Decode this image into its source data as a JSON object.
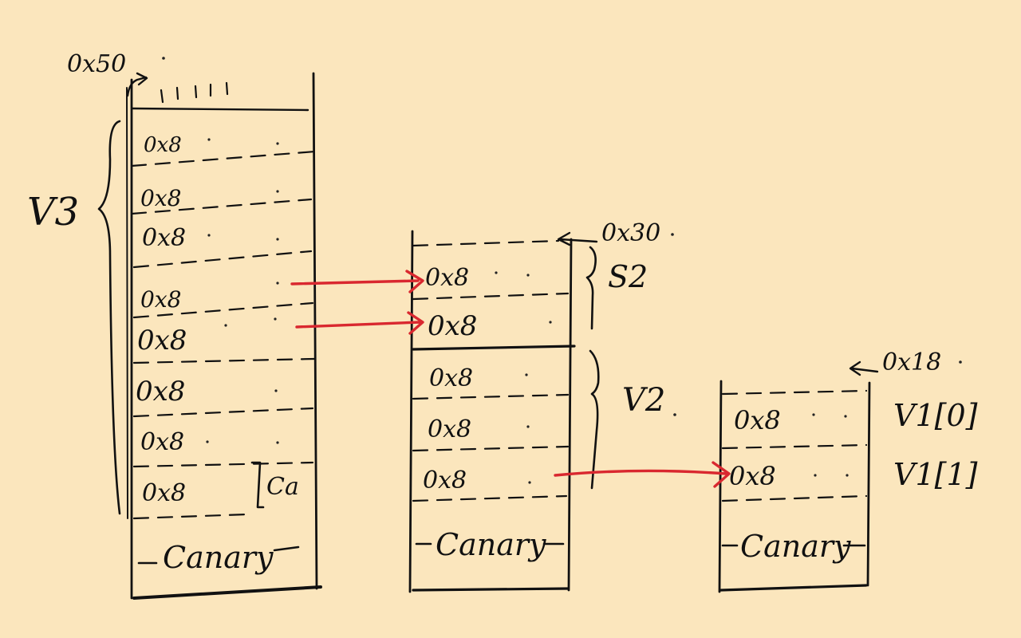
{
  "stack_v3": {
    "top_offset": "0x50",
    "group_label": "V3",
    "cells": [
      "0x8",
      "0x8",
      "0x8",
      "0x8",
      "0x8",
      "0x8",
      "0x8",
      "0x8"
    ],
    "ca_label": "Ca",
    "canary": "Canary"
  },
  "stack_s2_v2": {
    "top_offset": "0x30",
    "s2_label": "S2",
    "v2_label": "V2",
    "cells": [
      "0x8",
      "0x8",
      "0x8",
      "0x8",
      "0x8"
    ],
    "canary": "Canary"
  },
  "stack_v1": {
    "top_offset": "0x18",
    "cells": [
      "0x8",
      "0x8"
    ],
    "cell_labels": [
      "V1[0]",
      "V1[1]"
    ],
    "canary": "Canary"
  },
  "colors": {
    "background": "#fbe6bd",
    "ink": "#111111",
    "arrow": "#d9282f"
  }
}
